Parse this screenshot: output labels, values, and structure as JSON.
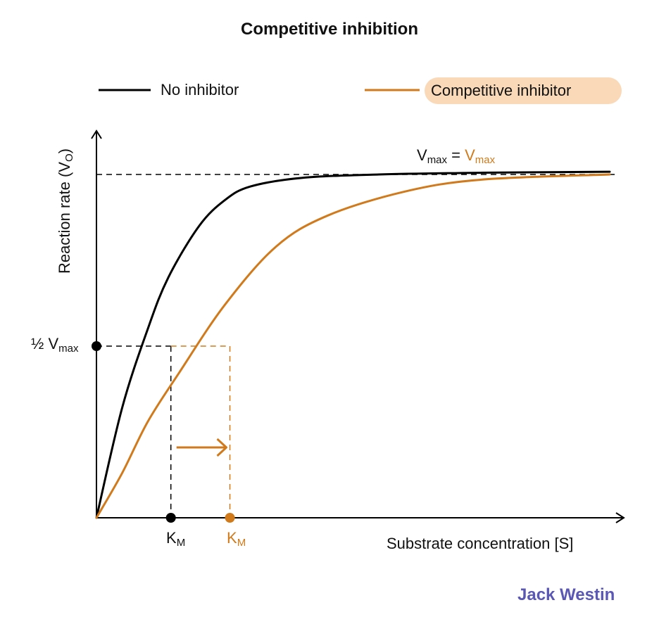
{
  "chart_data": {
    "type": "line",
    "title": "Competitive inhibition",
    "xlabel": "Substrate concentration [S]",
    "ylabel": {
      "text": "Reaction rate (V",
      "sub": "O",
      "close": ")"
    },
    "xlim": [
      0,
      100
    ],
    "ylim": [
      0,
      120
    ],
    "grid": false,
    "legend_position": "top",
    "series": [
      {
        "name": "No inhibitor",
        "color": "#000000",
        "points": [
          [
            0,
            0
          ],
          [
            5,
            32
          ],
          [
            10,
            55
          ],
          [
            14,
            70
          ],
          [
            20,
            85
          ],
          [
            25,
            92.5
          ],
          [
            30,
            96.5
          ],
          [
            40,
            99
          ],
          [
            55,
            100
          ],
          [
            75,
            100.5
          ],
          [
            100,
            100.8
          ]
        ]
      },
      {
        "name": "Competitive inhibitor",
        "color": "#d17a1c",
        "points": [
          [
            0,
            0
          ],
          [
            5,
            13
          ],
          [
            10,
            28
          ],
          [
            16,
            42
          ],
          [
            25,
            62
          ],
          [
            35,
            79
          ],
          [
            45,
            88
          ],
          [
            60,
            95
          ],
          [
            75,
            98.5
          ],
          [
            100,
            100
          ]
        ]
      }
    ],
    "vmax": 100,
    "half_vmax": 50,
    "km_no_inhibitor": 14.5,
    "km_competitive": 26,
    "annotations": {
      "vmax_label": {
        "left": "V",
        "left_sub": "max",
        "equals": " = ",
        "right": "V",
        "right_sub": "max"
      },
      "half_vmax_label": {
        "text": "½ V",
        "sub": "max"
      },
      "km_label": {
        "text": "K",
        "sub": "M"
      }
    }
  },
  "brand": {
    "watermark": "Jack Westin",
    "watermark_color": "#5a57b5"
  },
  "colors": {
    "black": "#000000",
    "orange": "#d17a1c",
    "pill": "#fad9b8"
  }
}
